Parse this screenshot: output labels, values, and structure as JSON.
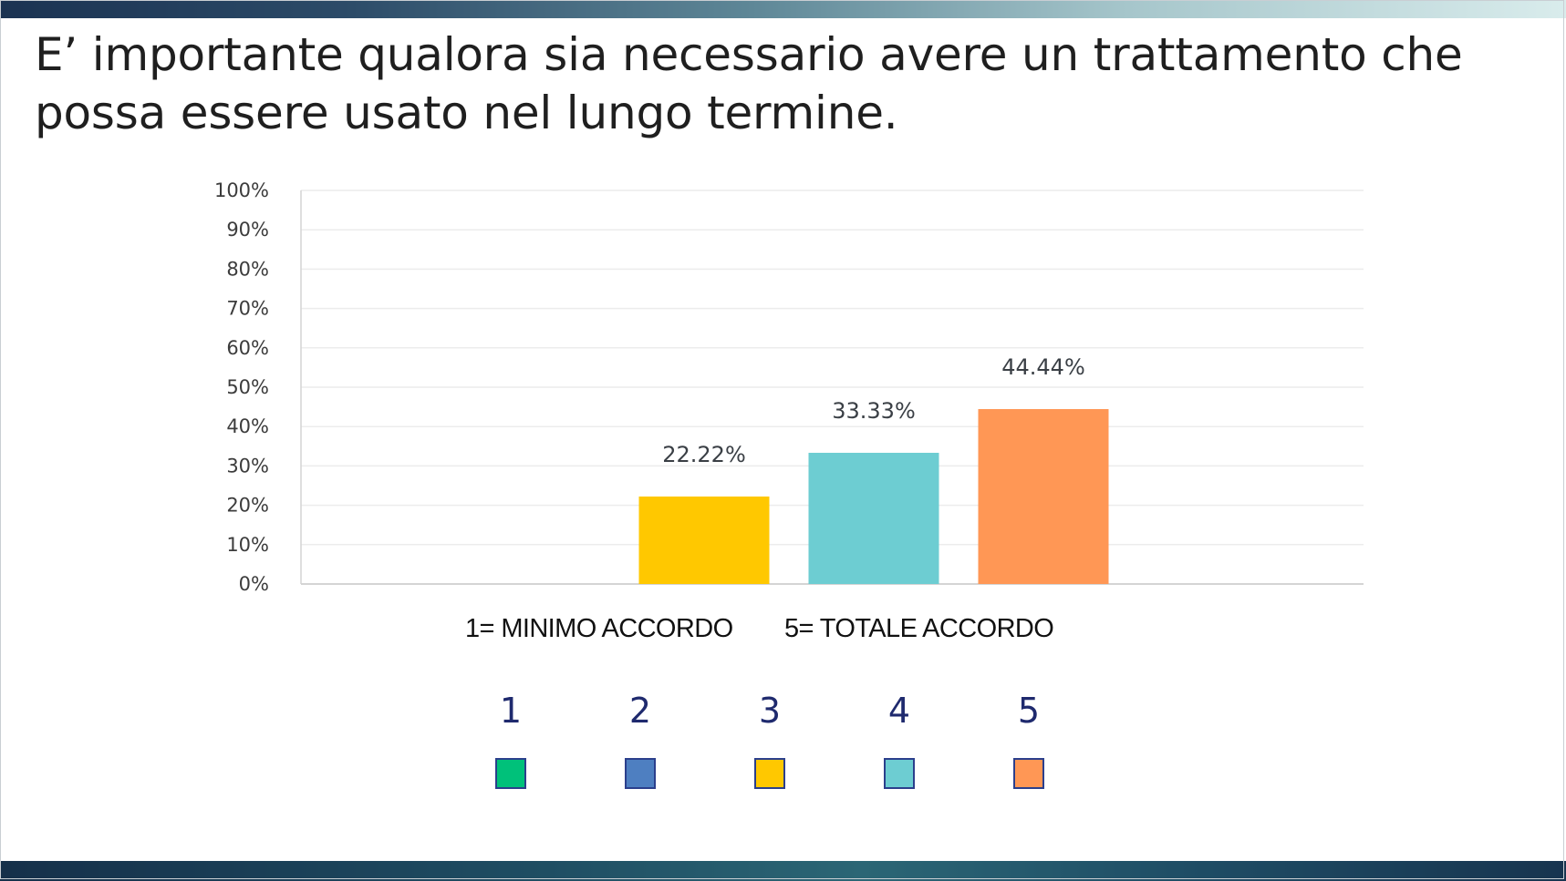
{
  "slide": {
    "title": "E’ importante qualora sia necessario avere un trattamento che possa essere usato nel lungo termine.",
    "scale_caption_min": "1= MINIMO ACCORDO",
    "scale_caption_max": "5= TOTALE ACCORDO"
  },
  "chart_data": {
    "type": "bar",
    "categories": [
      "1",
      "2",
      "3",
      "4",
      "5"
    ],
    "values": [
      0,
      0,
      22.22,
      33.33,
      44.44
    ],
    "data_labels": [
      "",
      "",
      "22.22%",
      "33.33%",
      "44.44%"
    ],
    "colors": [
      "#00c17a",
      "#4e7fc1",
      "#ffc800",
      "#6dcdd2",
      "#ff9755"
    ],
    "ylim": [
      0,
      100
    ],
    "yticks": [
      0,
      10,
      20,
      30,
      40,
      50,
      60,
      70,
      80,
      90,
      100
    ],
    "ytick_labels": [
      "0%",
      "10%",
      "20%",
      "30%",
      "40%",
      "50%",
      "60%",
      "70%",
      "80%",
      "90%",
      "100%"
    ],
    "grid": true,
    "gridline_color": "#ececec",
    "axis_line_color": "#d4d4d4",
    "legend_placement": "bottom"
  },
  "legend": {
    "items": [
      {
        "label": "1",
        "color": "#00c17a"
      },
      {
        "label": "2",
        "color": "#4e7fc1"
      },
      {
        "label": "3",
        "color": "#ffc800"
      },
      {
        "label": "4",
        "color": "#6dcdd2"
      },
      {
        "label": "5",
        "color": "#ff9755"
      }
    ]
  }
}
